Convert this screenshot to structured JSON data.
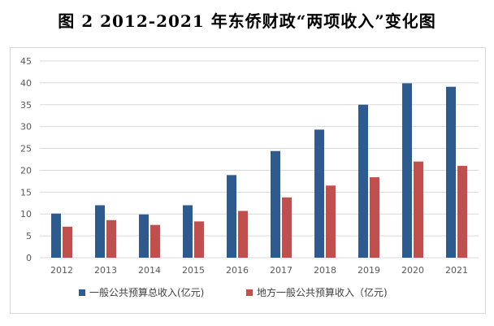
{
  "figure_title": "图 2   2012-2021 年东侨财政“两项收入”变化图",
  "colors": {
    "series1": "#2e5a8e",
    "series2": "#c0504d",
    "grid": "#d9d9d9",
    "axis_text": "#595959"
  },
  "chart_data": {
    "type": "bar",
    "categories": [
      "2012",
      "2013",
      "2014",
      "2015",
      "2016",
      "2017",
      "2018",
      "2019",
      "2020",
      "2021"
    ],
    "series": [
      {
        "name": "一般公共预算总收入(亿元)",
        "values": [
          10.1,
          12.0,
          9.9,
          12.0,
          18.9,
          24.4,
          29.3,
          35.0,
          39.9,
          39.1
        ]
      },
      {
        "name": "地方一般公共预算收入（亿元)",
        "values": [
          7.1,
          8.6,
          7.5,
          8.3,
          10.7,
          13.8,
          16.5,
          18.4,
          22.0,
          21.0
        ]
      }
    ],
    "ylim": [
      0,
      45
    ],
    "yticks": [
      "0",
      "5",
      "10",
      "15",
      "20",
      "25",
      "30",
      "35",
      "40",
      "45"
    ],
    "grid": true,
    "legend_position": "bottom"
  }
}
